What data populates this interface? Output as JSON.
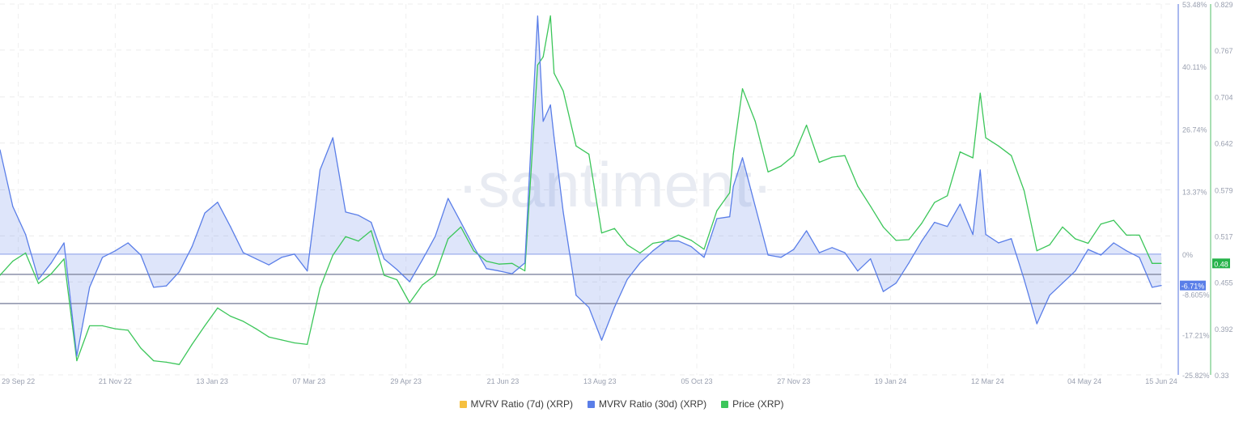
{
  "chart_data": {
    "type": "line",
    "watermark": "·santiment·",
    "x_ticks": [
      "29 Sep 22",
      "21 Nov 22",
      "13 Jan 23",
      "07 Mar 23",
      "29 Apr 23",
      "21 Jun 23",
      "13 Aug 23",
      "05 Oct 23",
      "27 Nov 23",
      "19 Jan 24",
      "12 Mar 24",
      "04 May 24",
      "15 Jun 24"
    ],
    "x_tick_dates": [
      "2022-09-29",
      "2022-11-21",
      "2023-01-13",
      "2023-03-07",
      "2023-04-29",
      "2023-06-21",
      "2023-08-13",
      "2023-10-05",
      "2023-11-27",
      "2024-01-19",
      "2024-03-12",
      "2024-05-04",
      "2024-06-15"
    ],
    "xlim": [
      "2022-09-19",
      "2024-06-15"
    ],
    "y_axes": [
      {
        "series": "MVRV Ratio (30d) (XRP)",
        "ylim": [
          -25.82,
          53.48
        ],
        "unit": "%",
        "ticks": [
          "53.48%",
          "40.11%",
          "26.74%",
          "13.37%",
          "0%",
          "-8.605%",
          "-17.21%",
          "-25.82%"
        ],
        "tick_values": [
          53.48,
          40.11,
          26.74,
          13.37,
          0,
          -8.605,
          -17.21,
          -25.82
        ],
        "color": "#5a7ee8"
      },
      {
        "series": "Price (XRP)",
        "ylim": [
          0.33,
          0.829
        ],
        "ticks": [
          "0.829",
          "0.767",
          "0.704",
          "0.642",
          "0.579",
          "0.517",
          "0.455",
          "0.392",
          "0.33"
        ],
        "tick_values": [
          0.829,
          0.767,
          0.704,
          0.642,
          0.579,
          0.517,
          0.455,
          0.392,
          0.33
        ],
        "color": "#3cc65a"
      }
    ],
    "reference_lines_mvrv": [
      -4.33,
      -10.56
    ],
    "grid": true,
    "legend_placement": "bottom",
    "legend": [
      {
        "name": "MVRV Ratio (7d) (XRP)",
        "color": "#f5c040"
      },
      {
        "name": "MVRV Ratio (30d) (XRP)",
        "color": "#5a7ee8"
      },
      {
        "name": "Price (XRP)",
        "color": "#3cc65a"
      }
    ],
    "last_values": {
      "mvrv_30d": "-6.71%",
      "price": "0.48"
    },
    "x": [
      "2022-09-19",
      "2022-09-26",
      "2022-10-03",
      "2022-10-10",
      "2022-10-17",
      "2022-10-24",
      "2022-10-31",
      "2022-11-07",
      "2022-11-14",
      "2022-11-21",
      "2022-11-28",
      "2022-12-05",
      "2022-12-12",
      "2022-12-19",
      "2022-12-26",
      "2023-01-02",
      "2023-01-09",
      "2023-01-16",
      "2023-01-23",
      "2023-01-30",
      "2023-02-06",
      "2023-02-13",
      "2023-02-20",
      "2023-02-27",
      "2023-03-06",
      "2023-03-13",
      "2023-03-20",
      "2023-03-27",
      "2023-04-03",
      "2023-04-10",
      "2023-04-17",
      "2023-04-24",
      "2023-05-01",
      "2023-05-08",
      "2023-05-15",
      "2023-05-22",
      "2023-05-29",
      "2023-06-05",
      "2023-06-12",
      "2023-06-19",
      "2023-06-26",
      "2023-07-03",
      "2023-07-10",
      "2023-07-13",
      "2023-07-17",
      "2023-07-19",
      "2023-07-24",
      "2023-07-31",
      "2023-08-07",
      "2023-08-14",
      "2023-08-21",
      "2023-08-28",
      "2023-09-04",
      "2023-09-11",
      "2023-09-18",
      "2023-09-25",
      "2023-10-02",
      "2023-10-09",
      "2023-10-16",
      "2023-10-23",
      "2023-10-25",
      "2023-10-30",
      "2023-11-06",
      "2023-11-13",
      "2023-11-20",
      "2023-11-27",
      "2023-12-04",
      "2023-12-11",
      "2023-12-18",
      "2023-12-25",
      "2024-01-01",
      "2024-01-08",
      "2024-01-15",
      "2024-01-22",
      "2024-01-29",
      "2024-02-05",
      "2024-02-12",
      "2024-02-19",
      "2024-02-26",
      "2024-03-04",
      "2024-03-08",
      "2024-03-11",
      "2024-03-18",
      "2024-03-25",
      "2024-04-01",
      "2024-04-08",
      "2024-04-15",
      "2024-04-22",
      "2024-04-29",
      "2024-05-06",
      "2024-05-13",
      "2024-05-20",
      "2024-05-27",
      "2024-06-03",
      "2024-06-10",
      "2024-06-15"
    ],
    "series": [
      {
        "name": "MVRV Ratio (30d) (XRP)",
        "color": "#5a7ee8",
        "values": [
          22.3,
          10.2,
          4.2,
          -5.4,
          -1.9,
          2.4,
          -21.8,
          -7.1,
          -0.7,
          0.7,
          2.4,
          -0.2,
          -7.1,
          -6.8,
          -3.8,
          1.6,
          8.8,
          11.1,
          5.9,
          0.3,
          -1.0,
          -2.3,
          -0.7,
          0.0,
          -3.6,
          18.0,
          24.9,
          9.0,
          8.3,
          6.8,
          -1.0,
          -3.3,
          -5.9,
          -1.2,
          3.8,
          11.9,
          6.8,
          1.6,
          -3.1,
          -3.6,
          -4.2,
          -1.9,
          50.9,
          28.4,
          31.9,
          24.9,
          9.0,
          -8.8,
          -11.4,
          -18.4,
          -11.4,
          -5.4,
          -1.9,
          0.7,
          2.8,
          2.8,
          1.6,
          -0.7,
          7.6,
          8.0,
          14.5,
          20.6,
          10.2,
          -0.2,
          -0.7,
          1.0,
          5.0,
          0.3,
          1.4,
          0.3,
          -3.6,
          -1.0,
          -8.0,
          -6.2,
          -1.9,
          2.8,
          6.8,
          5.9,
          10.7,
          4.2,
          18.0,
          4.2,
          2.4,
          3.3,
          -5.4,
          -14.9,
          -8.8,
          -6.2,
          -3.6,
          1.0,
          -0.2,
          2.4,
          0.7,
          -0.7,
          -7.1,
          -6.71
        ]
      },
      {
        "name": "Price (XRP)",
        "color": "#3cc65a",
        "values": [
          0.464,
          0.483,
          0.494,
          0.453,
          0.466,
          0.486,
          0.349,
          0.396,
          0.396,
          0.392,
          0.39,
          0.366,
          0.349,
          0.347,
          0.344,
          0.371,
          0.396,
          0.42,
          0.409,
          0.402,
          0.392,
          0.381,
          0.377,
          0.373,
          0.371,
          0.447,
          0.491,
          0.516,
          0.51,
          0.524,
          0.464,
          0.458,
          0.427,
          0.451,
          0.464,
          0.513,
          0.529,
          0.497,
          0.483,
          0.479,
          0.48,
          0.47,
          0.747,
          0.758,
          0.813,
          0.736,
          0.712,
          0.638,
          0.627,
          0.521,
          0.527,
          0.505,
          0.494,
          0.507,
          0.51,
          0.518,
          0.511,
          0.499,
          0.551,
          0.575,
          0.627,
          0.715,
          0.671,
          0.603,
          0.611,
          0.625,
          0.666,
          0.616,
          0.623,
          0.625,
          0.584,
          0.557,
          0.529,
          0.511,
          0.512,
          0.534,
          0.562,
          0.571,
          0.63,
          0.622,
          0.709,
          0.649,
          0.638,
          0.625,
          0.578,
          0.497,
          0.505,
          0.529,
          0.513,
          0.507,
          0.533,
          0.538,
          0.518,
          0.518,
          0.48,
          0.48
        ]
      }
    ]
  }
}
